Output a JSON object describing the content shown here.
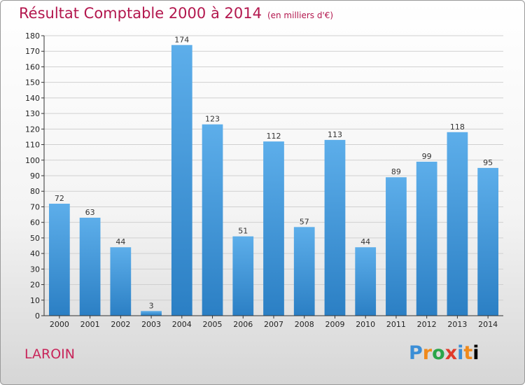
{
  "title": "Résultat Comptable 2000 à 2014",
  "subtitle": "(en milliers d'€)",
  "commune": "LAROIN",
  "logo": [
    "P",
    "r",
    "o",
    "x",
    "i",
    "t",
    "i"
  ],
  "colors": {
    "title": "#b3174e",
    "bar_top": "#5daeea",
    "bar_bottom": "#2b7fc4",
    "grid": "#d0d0d0"
  },
  "chart_data": {
    "type": "bar",
    "categories": [
      "2000",
      "2001",
      "2002",
      "2003",
      "2004",
      "2005",
      "2006",
      "2007",
      "2008",
      "2009",
      "2010",
      "2011",
      "2012",
      "2013",
      "2014"
    ],
    "values": [
      72,
      63,
      44,
      3,
      174,
      123,
      51,
      112,
      57,
      113,
      44,
      89,
      99,
      118,
      95
    ],
    "ylim": [
      0,
      180
    ],
    "yticks": [
      0,
      10,
      20,
      30,
      40,
      50,
      60,
      70,
      80,
      90,
      100,
      110,
      120,
      130,
      140,
      150,
      160,
      170,
      180
    ],
    "grid": true,
    "legend": "none"
  }
}
